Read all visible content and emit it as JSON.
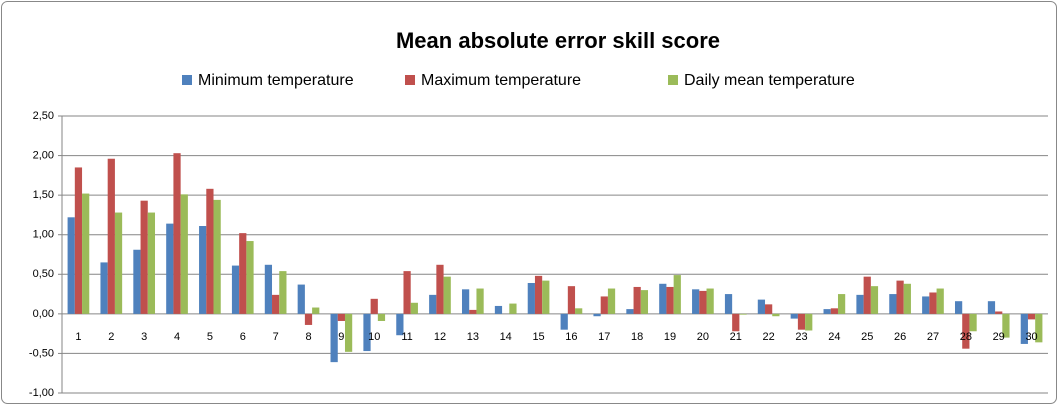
{
  "chart_data": {
    "type": "bar",
    "title": "Mean absolute error skill score",
    "categories": [
      "1",
      "2",
      "3",
      "4",
      "5",
      "6",
      "7",
      "8",
      "9",
      "10",
      "11",
      "12",
      "13",
      "14",
      "15",
      "16",
      "17",
      "18",
      "19",
      "20",
      "21",
      "22",
      "23",
      "24",
      "25",
      "26",
      "27",
      "28",
      "29",
      "30"
    ],
    "series": [
      {
        "name": "Minimum temperature",
        "color": "#4f81bd",
        "values": [
          1.22,
          0.65,
          0.81,
          1.14,
          1.11,
          0.61,
          0.62,
          0.37,
          -0.61,
          -0.47,
          -0.27,
          0.24,
          0.31,
          0.1,
          0.39,
          -0.2,
          -0.03,
          0.06,
          0.38,
          0.31,
          0.25,
          0.18,
          -0.06,
          0.06,
          0.24,
          0.25,
          0.22,
          0.16,
          0.16,
          -0.38
        ]
      },
      {
        "name": "Maximum temperature",
        "color": "#c0504d",
        "values": [
          1.85,
          1.96,
          1.43,
          2.03,
          1.58,
          1.02,
          0.24,
          -0.14,
          -0.09,
          0.19,
          0.54,
          0.62,
          0.05,
          0.0,
          0.48,
          0.35,
          0.22,
          0.34,
          0.34,
          0.29,
          -0.22,
          0.12,
          -0.2,
          0.07,
          0.47,
          0.42,
          0.27,
          -0.44,
          0.03,
          -0.07
        ]
      },
      {
        "name": "Daily mean temperature",
        "color": "#9bbb59",
        "values": [
          1.52,
          1.28,
          1.28,
          1.51,
          1.44,
          0.92,
          0.54,
          0.08,
          -0.48,
          -0.09,
          0.14,
          0.47,
          0.32,
          0.13,
          0.42,
          0.07,
          0.32,
          0.3,
          0.49,
          0.32,
          -0.01,
          -0.03,
          -0.21,
          0.25,
          0.35,
          0.38,
          0.32,
          -0.22,
          -0.3,
          -0.36
        ]
      }
    ],
    "ylim": [
      -1,
      2.5
    ],
    "yticks": [
      {
        "value": -1,
        "label": "-1,00"
      },
      {
        "value": -0.5,
        "label": "-0,50"
      },
      {
        "value": 0,
        "label": "0,00"
      },
      {
        "value": 0.5,
        "label": "0,50"
      },
      {
        "value": 1,
        "label": "1,00"
      },
      {
        "value": 1.5,
        "label": "1,50"
      },
      {
        "value": 2,
        "label": "2,00"
      },
      {
        "value": 2.5,
        "label": "2,50"
      }
    ],
    "grid": true,
    "legend": "top"
  }
}
